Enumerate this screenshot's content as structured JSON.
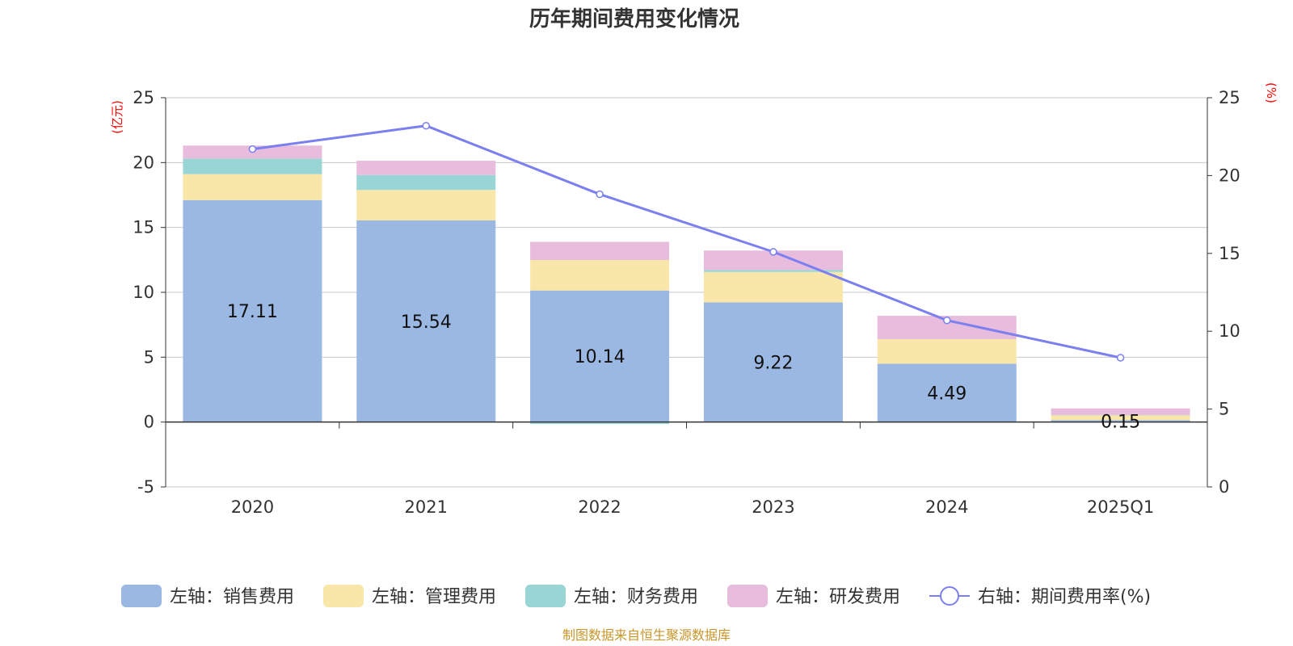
{
  "chart_data": {
    "type": "bar",
    "title": "历年期间费用变化情况",
    "categories": [
      "2020",
      "2021",
      "2022",
      "2023",
      "2024",
      "2025Q1"
    ],
    "left_axis": {
      "unit": "(亿元)",
      "ylim": [
        -5,
        25
      ],
      "ticks": [
        "25",
        "20",
        "15",
        "10",
        "5",
        "0",
        "-5"
      ]
    },
    "right_axis": {
      "unit": "(%)",
      "ylim": [
        0,
        25
      ],
      "ticks": [
        "25",
        "20",
        "15",
        "10",
        "5",
        "0"
      ]
    },
    "series": [
      {
        "name": "左轴：销售费用",
        "color": "#9bb8e2",
        "values": [
          17.11,
          15.54,
          10.14,
          9.22,
          4.49,
          0.15
        ]
      },
      {
        "name": "左轴：管理费用",
        "color": "#f9e7aa",
        "values": [
          2.0,
          2.35,
          2.35,
          2.35,
          1.9,
          0.38
        ]
      },
      {
        "name": "左轴：财务费用",
        "color": "#9ad5d6",
        "values": [
          1.2,
          1.15,
          -0.15,
          0.15,
          -0.05,
          0.02
        ]
      },
      {
        "name": "左轴：研发费用",
        "color": "#e8bcdc",
        "values": [
          1.0,
          1.1,
          1.4,
          1.5,
          1.8,
          0.5
        ]
      }
    ],
    "line": {
      "name": "右轴：期间费用率(%)",
      "color": "#7b7ff0",
      "values": [
        21.7,
        23.2,
        18.8,
        15.1,
        10.7,
        8.3
      ]
    },
    "data_labels": [
      "17.11",
      "15.54",
      "10.14",
      "9.22",
      "4.49",
      "0.15"
    ],
    "grid": true,
    "legend_position": "bottom",
    "source": "制图数据来自恒生聚源数据库"
  }
}
